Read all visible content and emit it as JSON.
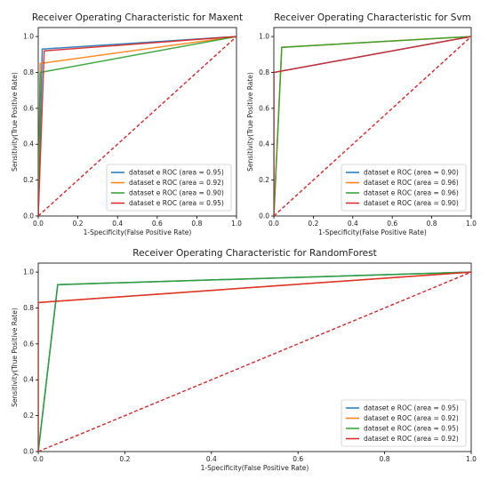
{
  "chart_data": [
    {
      "type": "line",
      "title": "Receiver Operating Characteristic for Maxent",
      "xlabel": "1-Specificity(False Positive Rate)",
      "ylabel": "Sensitivity(True Positive Rate)",
      "xlim": [
        0,
        1
      ],
      "ylim": [
        0,
        1.05
      ],
      "xticks": [
        "0.0",
        "0.2",
        "0.4",
        "0.6",
        "0.8",
        "1.0"
      ],
      "yticks": [
        "0.0",
        "0.2",
        "0.4",
        "0.6",
        "0.8",
        "1.0"
      ],
      "legend_position": "lower-right",
      "series": [
        {
          "name": "dataset e ROC (area = 0.95)",
          "color": "#1f77b4",
          "x": [
            0,
            0.02,
            1
          ],
          "y": [
            0,
            0.93,
            1
          ]
        },
        {
          "name": "dataset e ROC (area = 0.92)",
          "color": "#ff7f0e",
          "x": [
            0,
            0.01,
            1
          ],
          "y": [
            0,
            0.85,
            1
          ]
        },
        {
          "name": "dataset e ROC (area = 0.90)",
          "color": "#2ca02c",
          "x": [
            0,
            0.01,
            1
          ],
          "y": [
            0,
            0.8,
            1
          ]
        },
        {
          "name": "dataset e ROC (area = 0.95)",
          "color": "#d62728",
          "x": [
            0,
            0.03,
            1
          ],
          "y": [
            0,
            0.92,
            1
          ]
        }
      ],
      "diagonal": {
        "x": [
          0,
          1
        ],
        "y": [
          0,
          1
        ],
        "color": "#d62728",
        "style": "dashed"
      }
    },
    {
      "type": "line",
      "title": "Receiver Operating Characteristic for Svm",
      "xlabel": "1-Specificity(False Positive Rate)",
      "ylabel": "Sensitivity(True Positive Rate)",
      "xlim": [
        0,
        1
      ],
      "ylim": [
        0,
        1.05
      ],
      "xticks": [
        "0.0",
        "0.2",
        "0.4",
        "0.6",
        "0.8",
        "1.0"
      ],
      "yticks": [
        "0.0",
        "0.2",
        "0.4",
        "0.6",
        "0.8",
        "1.0"
      ],
      "legend_position": "lower-right",
      "series": [
        {
          "name": "dataset e ROC (area = 0.90)",
          "color": "#1f77b4",
          "x": [
            0,
            0.0,
            1
          ],
          "y": [
            0,
            0.8,
            1
          ]
        },
        {
          "name": "dataset e ROC (area = 0.96)",
          "color": "#ff7f0e",
          "x": [
            0,
            0.04,
            1
          ],
          "y": [
            0,
            0.94,
            1
          ]
        },
        {
          "name": "dataset e ROC (area = 0.96)",
          "color": "#2ca02c",
          "x": [
            0,
            0.04,
            1
          ],
          "y": [
            0,
            0.94,
            1
          ]
        },
        {
          "name": "dataset e ROC (area = 0.90)",
          "color": "#d62728",
          "x": [
            0,
            0.0,
            1
          ],
          "y": [
            0,
            0.8,
            1
          ]
        }
      ],
      "diagonal": {
        "x": [
          0,
          1
        ],
        "y": [
          0,
          1
        ],
        "color": "#d62728",
        "style": "dashed"
      }
    },
    {
      "type": "line",
      "title": "Receiver Operating Characteristic for RandomForest",
      "xlabel": "1-Specificity(False Positive Rate)",
      "ylabel": "Sensitivity(True Positive Rate)",
      "xlim": [
        0,
        1
      ],
      "ylim": [
        0,
        1.05
      ],
      "xticks": [
        "0.0",
        "0.2",
        "0.4",
        "0.6",
        "0.8",
        "1.0"
      ],
      "yticks": [
        "0.0",
        "0.2",
        "0.4",
        "0.6",
        "0.8",
        "1.0"
      ],
      "legend_position": "lower-right",
      "series": [
        {
          "name": "dataset e ROC (area = 0.95)",
          "color": "#1f77b4",
          "x": [
            0,
            0.045,
            1
          ],
          "y": [
            0,
            0.93,
            1
          ]
        },
        {
          "name": "dataset e ROC (area = 0.92)",
          "color": "#ff7f0e",
          "x": [
            0,
            0.0,
            1
          ],
          "y": [
            0,
            0.83,
            1
          ]
        },
        {
          "name": "dataset e ROC (area = 0.95)",
          "color": "#2ca02c",
          "x": [
            0,
            0.045,
            1
          ],
          "y": [
            0,
            0.93,
            1
          ]
        },
        {
          "name": "dataset e ROC (area = 0.92)",
          "color": "#d62728",
          "x": [
            0,
            0.0,
            1
          ],
          "y": [
            0,
            0.83,
            1
          ]
        }
      ],
      "diagonal": {
        "x": [
          0,
          1
        ],
        "y": [
          0,
          1
        ],
        "color": "#d62728",
        "style": "dashed"
      }
    }
  ]
}
